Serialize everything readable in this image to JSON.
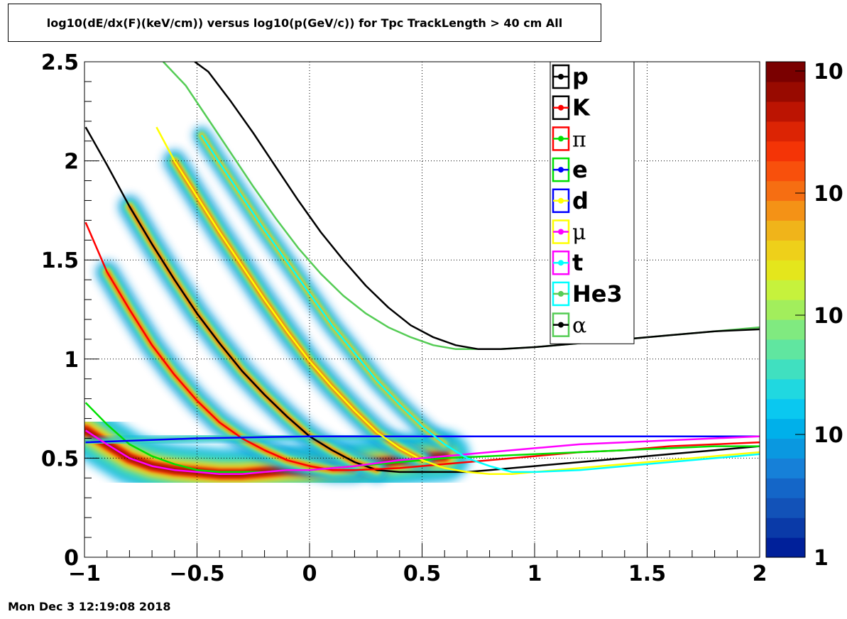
{
  "title": "log10(dE/dx(F)(keV/cm)) versus log10(p(GeV/c)) for Tpc TrackLength > 40 cm All",
  "footer_date": "Mon Dec  3 12:19:08 2018",
  "chart_data": {
    "type": "heatmap",
    "title": "log10(dE/dx(F)(keV/cm)) versus log10(p(GeV/c)) for Tpc TrackLength > 40 cm All",
    "xlabel": "",
    "ylabel": "",
    "xlim": [
      -1,
      2
    ],
    "ylim": [
      0,
      2.5
    ],
    "grid": true,
    "x_ticks": [
      "−1",
      "−0.5",
      "0",
      "0.5",
      "1",
      "1.5",
      "2"
    ],
    "x_tick_values": [
      -1,
      -0.5,
      0,
      0.5,
      1,
      1.5,
      2
    ],
    "y_ticks": [
      "0",
      "0.5",
      "1",
      "1.5",
      "2",
      "2.5"
    ],
    "y_tick_values": [
      0,
      0.5,
      1,
      1.5,
      2,
      2.5
    ],
    "colorbar": {
      "scale": "log",
      "labels": [
        "1",
        "10",
        "10",
        "10",
        "10"
      ],
      "colors": [
        "#00209a",
        "#0a3aa8",
        "#1252b8",
        "#1466c8",
        "#1680d8",
        "#0a98e0",
        "#00b0ea",
        "#0ac8f0",
        "#20d8e0",
        "#40e0c0",
        "#60e6a0",
        "#80ea80",
        "#a2ee5c",
        "#c6f23c",
        "#e4e61c",
        "#eed01a",
        "#f0b41a",
        "#f49216",
        "#f66e12",
        "#f8500c",
        "#f43406",
        "#dc2404",
        "#bc1402",
        "#980a00",
        "#7a0000"
      ]
    },
    "legend_position": "top-right",
    "series": [
      {
        "name": "p",
        "color": "#000000",
        "x": [
          -0.995,
          -0.9,
          -0.8,
          -0.7,
          -0.6,
          -0.5,
          -0.4,
          -0.3,
          -0.2,
          -0.1,
          0,
          0.1,
          0.2,
          0.3,
          0.4,
          0.5,
          0.6,
          0.7,
          0.8,
          0.9,
          1,
          1.2,
          1.4,
          1.6,
          1.8,
          2.0
        ],
        "y": [
          2.17,
          1.98,
          1.77,
          1.58,
          1.4,
          1.23,
          1.08,
          0.94,
          0.82,
          0.71,
          0.61,
          0.54,
          0.48,
          0.44,
          0.43,
          0.43,
          0.43,
          0.43,
          0.44,
          0.45,
          0.46,
          0.48,
          0.5,
          0.52,
          0.54,
          0.56
        ]
      },
      {
        "name": "K",
        "color": "#ff0000",
        "x": [
          -0.995,
          -0.9,
          -0.8,
          -0.7,
          -0.6,
          -0.5,
          -0.4,
          -0.3,
          -0.2,
          -0.1,
          0,
          0.1,
          0.2,
          0.4,
          0.6,
          0.8,
          1,
          1.2,
          1.4,
          1.6,
          1.8,
          2.0
        ],
        "y": [
          1.69,
          1.44,
          1.25,
          1.07,
          0.92,
          0.79,
          0.68,
          0.6,
          0.54,
          0.49,
          0.46,
          0.44,
          0.44,
          0.45,
          0.47,
          0.49,
          0.51,
          0.53,
          0.54,
          0.56,
          0.57,
          0.58
        ]
      },
      {
        "name": "π",
        "color": "#00e000",
        "x": [
          -0.995,
          -0.9,
          -0.8,
          -0.7,
          -0.6,
          -0.5,
          -0.4,
          -0.3,
          -0.2,
          -0.1,
          0,
          0.2,
          0.4,
          0.6,
          0.8,
          1,
          1.2,
          1.4,
          1.6,
          1.8,
          2.0
        ],
        "y": [
          0.78,
          0.67,
          0.57,
          0.51,
          0.47,
          0.44,
          0.43,
          0.43,
          0.43,
          0.44,
          0.44,
          0.46,
          0.48,
          0.5,
          0.51,
          0.52,
          0.53,
          0.54,
          0.55,
          0.56,
          0.56
        ]
      },
      {
        "name": "e",
        "color": "#0000ff",
        "x": [
          -0.995,
          -0.5,
          0,
          0.5,
          1,
          1.5,
          2.0
        ],
        "y": [
          0.58,
          0.6,
          0.61,
          0.61,
          0.61,
          0.61,
          0.61
        ]
      },
      {
        "name": "d",
        "color": "#ffff00",
        "x": [
          -0.68,
          -0.6,
          -0.5,
          -0.4,
          -0.3,
          -0.2,
          -0.1,
          0,
          0.1,
          0.2,
          0.3,
          0.4,
          0.5,
          0.6,
          0.7,
          0.8,
          0.9,
          1,
          1.2,
          1.4,
          1.6,
          1.8,
          2.0
        ],
        "y": [
          2.17,
          2.0,
          1.82,
          1.64,
          1.47,
          1.3,
          1.14,
          0.99,
          0.86,
          0.74,
          0.63,
          0.55,
          0.49,
          0.45,
          0.43,
          0.42,
          0.42,
          0.43,
          0.45,
          0.47,
          0.49,
          0.51,
          0.53
        ]
      },
      {
        "name": "μ",
        "color": "#ff00ff",
        "x": [
          -0.995,
          -0.9,
          -0.8,
          -0.7,
          -0.6,
          -0.5,
          -0.4,
          -0.3,
          -0.2,
          -0.1,
          0,
          0.2,
          0.4,
          0.6,
          0.8,
          1,
          1.2,
          1.4,
          1.6,
          1.8,
          2.0
        ],
        "y": [
          0.64,
          0.57,
          0.5,
          0.46,
          0.44,
          0.43,
          0.42,
          0.42,
          0.43,
          0.44,
          0.44,
          0.46,
          0.49,
          0.51,
          0.53,
          0.55,
          0.57,
          0.58,
          0.59,
          0.6,
          0.61
        ]
      },
      {
        "name": "t",
        "color": "#00ffff",
        "x": [
          -0.48,
          -0.4,
          -0.3,
          -0.2,
          -0.1,
          0,
          0.1,
          0.2,
          0.3,
          0.4,
          0.5,
          0.6,
          0.7,
          0.8,
          0.9,
          1,
          1.2,
          1.4,
          1.6,
          1.8,
          2.0
        ],
        "y": [
          2.13,
          1.99,
          1.82,
          1.65,
          1.49,
          1.33,
          1.17,
          1.03,
          0.89,
          0.77,
          0.66,
          0.57,
          0.5,
          0.46,
          0.43,
          0.43,
          0.44,
          0.46,
          0.48,
          0.5,
          0.52
        ]
      },
      {
        "name": "He3",
        "color": "#55cc55",
        "x": [
          -0.65,
          -0.55,
          -0.45,
          -0.35,
          -0.25,
          -0.15,
          -0.05,
          0.05,
          0.15,
          0.25,
          0.35,
          0.45,
          0.55,
          0.65,
          0.75,
          0.85,
          1.0,
          1.2,
          1.4,
          1.6,
          1.8,
          2.0
        ],
        "y": [
          2.5,
          2.38,
          2.21,
          2.04,
          1.87,
          1.71,
          1.56,
          1.43,
          1.32,
          1.23,
          1.16,
          1.11,
          1.07,
          1.05,
          1.05,
          1.05,
          1.06,
          1.08,
          1.1,
          1.12,
          1.14,
          1.16
        ]
      },
      {
        "name": "α",
        "color": "#000000",
        "x": [
          -0.51,
          -0.45,
          -0.35,
          -0.25,
          -0.15,
          -0.05,
          0.05,
          0.15,
          0.25,
          0.35,
          0.45,
          0.55,
          0.65,
          0.75,
          0.85,
          1.0,
          1.2,
          1.4,
          1.6,
          1.8,
          2.0
        ],
        "y": [
          2.5,
          2.45,
          2.3,
          2.14,
          1.97,
          1.8,
          1.64,
          1.5,
          1.37,
          1.26,
          1.17,
          1.11,
          1.07,
          1.05,
          1.05,
          1.06,
          1.08,
          1.1,
          1.12,
          1.14,
          1.15
        ]
      }
    ]
  }
}
